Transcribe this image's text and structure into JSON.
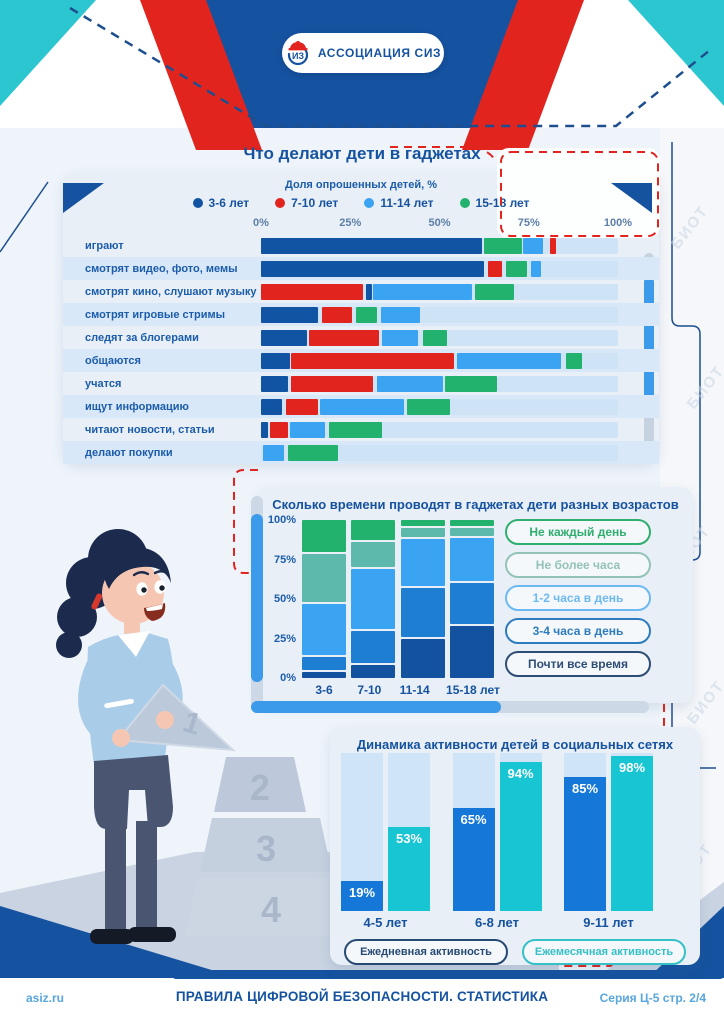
{
  "header": {
    "logo_text": "АССОЦИАЦИЯ СИЗ",
    "logo_monogram": "ИЗ"
  },
  "footer": {
    "site": "asiz.ru",
    "title": "ПРАВИЛА ЦИФРОВОЙ БЕЗОПАСНОСТИ. СТАТИСТИКА",
    "series": "Серия Ц-5 стр. 2/4"
  },
  "illustration": {
    "pyramid_labels": [
      "1",
      "2",
      "3",
      "4"
    ]
  },
  "colors": {
    "navy": "#15529f",
    "red": "#e2241f",
    "cyan_decor": "#2cc6d0",
    "card_bg": "#e9eff6",
    "track": "#cfe3f6",
    "stripe": "#d9e8f8",
    "accent_blue": "#3b9ae9",
    "footer_link": "#58a6de"
  },
  "chart_data": [
    {
      "type": "bar",
      "variant": "horizontal-overlap",
      "title": "Что делают дети в гаджетах",
      "subtitle": "Доля опрошенных детей, %",
      "xlim": [
        0,
        100
      ],
      "x_ticks": [
        "0%",
        "25%",
        "50%",
        "75%",
        "100%"
      ],
      "legend": [
        {
          "label": "3-6 лет",
          "color": "#1254a4"
        },
        {
          "label": "7-10 лет",
          "color": "#e2241f"
        },
        {
          "label": "11-14 лет",
          "color": "#3ba4f2"
        },
        {
          "label": "15-18 лет",
          "color": "#22b26e"
        }
      ],
      "series_colors": {
        "3-6 лет": "#1254a4",
        "7-10 лет": "#e2241f",
        "11-14 лет": "#3ba4f2",
        "15-18 лет": "#22b26e"
      },
      "rows": [
        {
          "label": "играют",
          "segments": [
            [
              "3-6 лет",
              0,
              62
            ],
            [
              "15-18 лет",
              62.5,
              73
            ],
            [
              "11-14 лет",
              73.5,
              79
            ],
            [
              "7-10 лет",
              81,
              82.5
            ]
          ]
        },
        {
          "label": "смотрят видео, фото, мемы",
          "segments": [
            [
              "3-6 лет",
              0,
              62.5
            ],
            [
              "7-10 лет",
              63.5,
              67.5
            ],
            [
              "15-18 лет",
              68.5,
              74.5
            ],
            [
              "11-14 лет",
              75.5,
              78.5
            ]
          ]
        },
        {
          "label": "смотрят кино, слушают музыку",
          "segments": [
            [
              "7-10 лет",
              0,
              28.5
            ],
            [
              "3-6 лет",
              29.5,
              31
            ],
            [
              "11-14 лет",
              31.5,
              59
            ],
            [
              "15-18 лет",
              60,
              71
            ]
          ]
        },
        {
          "label": "смотрят игровые стримы",
          "segments": [
            [
              "3-6 лет",
              0,
              16
            ],
            [
              "7-10 лет",
              17,
              25.5
            ],
            [
              "15-18 лет",
              26.5,
              32.5
            ],
            [
              "11-14 лет",
              33.5,
              44.5
            ]
          ]
        },
        {
          "label": "следят за блогерами",
          "segments": [
            [
              "3-6 лет",
              0,
              13
            ],
            [
              "7-10 лет",
              13.5,
              33
            ],
            [
              "11-14 лет",
              34,
              44
            ],
            [
              "15-18 лет",
              45.5,
              52
            ]
          ]
        },
        {
          "label": "общаются",
          "segments": [
            [
              "3-6 лет",
              0,
              8
            ],
            [
              "7-10 лет",
              8.5,
              54
            ],
            [
              "11-14 лет",
              55,
              84
            ],
            [
              "15-18 лет",
              85.5,
              90
            ]
          ]
        },
        {
          "label": "учатся",
          "segments": [
            [
              "3-6 лет",
              0,
              7.5
            ],
            [
              "7-10 лет",
              8.5,
              31.5
            ],
            [
              "11-14 лет",
              32.5,
              51
            ],
            [
              "15-18 лет",
              51.5,
              66
            ]
          ]
        },
        {
          "label": "ищут информацию",
          "segments": [
            [
              "3-6 лет",
              0,
              6
            ],
            [
              "7-10 лет",
              7,
              16
            ],
            [
              "11-14 лет",
              16.5,
              40
            ],
            [
              "15-18 лет",
              41,
              53
            ]
          ]
        },
        {
          "label": "читают новости, статьи",
          "segments": [
            [
              "3-6 лет",
              0,
              2
            ],
            [
              "7-10 лет",
              2.5,
              7.5
            ],
            [
              "11-14 лет",
              8,
              18
            ],
            [
              "15-18 лет",
              19,
              34
            ]
          ]
        },
        {
          "label": "делают покупки",
          "segments": [
            [
              "11-14 лет",
              0.5,
              6.5
            ],
            [
              "15-18 лет",
              7.5,
              21.5
            ]
          ]
        }
      ]
    },
    {
      "type": "bar",
      "variant": "stacked-100",
      "title": "Сколько времени проводят в гаджетах дети разных возрастов",
      "categories": [
        "3-6",
        "7-10",
        "11-14",
        "15-18 лет"
      ],
      "y_ticks": [
        "100%",
        "75%",
        "50%",
        "25%",
        "0%"
      ],
      "series_bottom_to_top": [
        {
          "name": "Почти все время",
          "color": "#12529e",
          "values": [
            4,
            9,
            26,
            35
          ]
        },
        {
          "name": "3-4 часа в день",
          "color": "#1e7ed2",
          "values": [
            9,
            21,
            33,
            27
          ]
        },
        {
          "name": "1-2 часа в день",
          "color": "#3ba4f2",
          "values": [
            34,
            40,
            31,
            29
          ]
        },
        {
          "name": "Не более часа",
          "color": "#5cb9ab",
          "values": [
            32,
            17,
            6,
            5
          ]
        },
        {
          "name": "Не каждый день",
          "color": "#22b26e",
          "values": [
            21,
            13,
            4,
            4
          ]
        }
      ],
      "legend": [
        {
          "label": "Не каждый день",
          "color": "#2fae6f"
        },
        {
          "label": "Не более часа",
          "color": "#93c2b9"
        },
        {
          "label": "1-2 часа в день",
          "color": "#6cb9f2"
        },
        {
          "label": "3-4 часа в день",
          "color": "#2e7cbe"
        },
        {
          "label": "Почти все время",
          "color": "#2e4d75"
        }
      ]
    },
    {
      "type": "bar",
      "variant": "grouped",
      "title": "Динамика активности детей в социальных сетях",
      "categories": [
        "4-5 лет",
        "6-8 лет",
        "9-11 лет"
      ],
      "ylim": [
        0,
        100
      ],
      "value_suffix": "%",
      "series": [
        {
          "name": "Ежедневная активность",
          "color": "#1578d8",
          "values": [
            19,
            65,
            85
          ]
        },
        {
          "name": "Ежемесячная активность",
          "color": "#18c5d3",
          "values": [
            53,
            94,
            98
          ]
        }
      ],
      "legend": [
        {
          "label": "Ежедневная активность",
          "color": "#274a73"
        },
        {
          "label": "Ежемесячная активность",
          "color": "#35c0c6"
        }
      ]
    }
  ],
  "watermark": "БИОТ"
}
